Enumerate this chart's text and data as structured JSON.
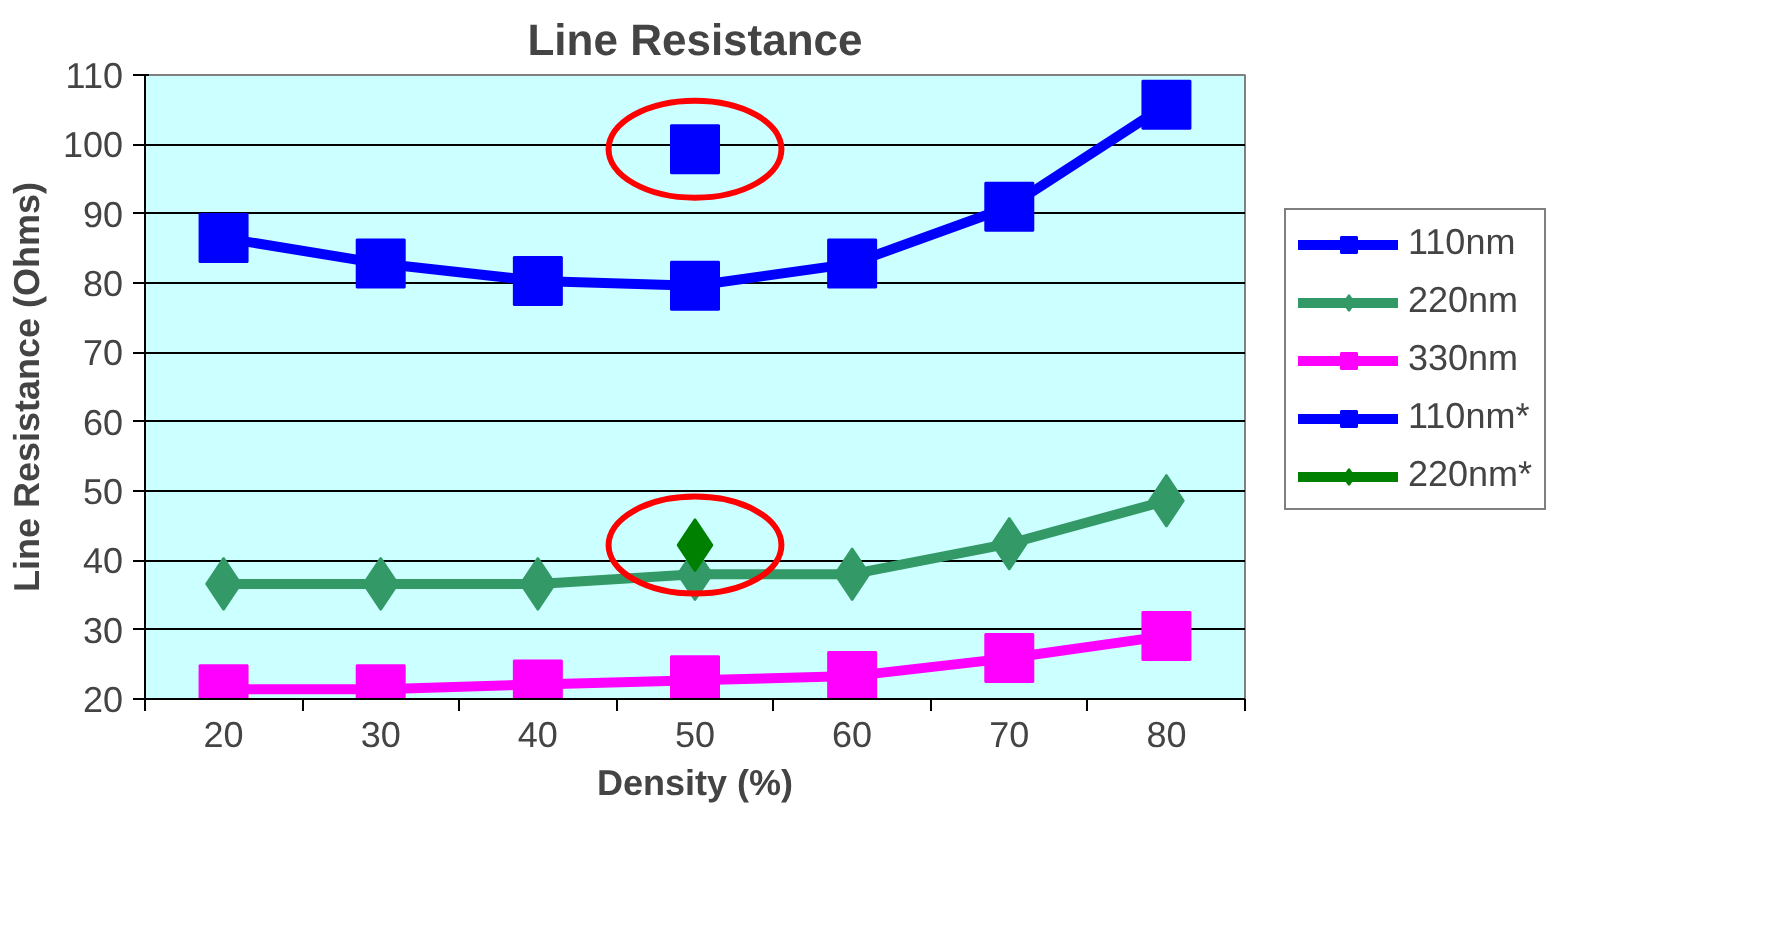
{
  "chart_data": {
    "type": "line",
    "title": "Line Resistance",
    "xlabel": "Density (%)",
    "ylabel": "Line Resistance (Ohms)",
    "categories": [
      "20",
      "30",
      "40",
      "50",
      "60",
      "70",
      "80"
    ],
    "series": [
      {
        "name": "110nm",
        "color": "#0000ff",
        "marker": "square",
        "values": [
          86.5,
          82.8,
          80.3,
          79.6,
          82.8,
          91,
          105.7
        ]
      },
      {
        "name": "220nm",
        "color": "#339966",
        "marker": "diamond",
        "values": [
          36.6,
          36.6,
          36.6,
          38,
          38,
          42.4,
          48.6
        ]
      },
      {
        "name": "330nm",
        "color": "#ff00ff",
        "marker": "square",
        "values": [
          21.4,
          21.4,
          22.1,
          22.7,
          23.3,
          25.9,
          29.1
        ]
      },
      {
        "name": "110nm*",
        "color": "#0000ff",
        "marker": "square",
        "values": [
          null,
          null,
          null,
          99.3,
          null,
          null,
          null
        ]
      },
      {
        "name": "220nm*",
        "color": "#008000",
        "marker": "diamond",
        "values": [
          null,
          null,
          null,
          42.2,
          null,
          null,
          null
        ]
      }
    ],
    "ylim": [
      20,
      110
    ],
    "yticks": [
      20,
      30,
      40,
      50,
      60,
      70,
      80,
      90,
      100,
      110
    ],
    "grid": "y",
    "legend": "right"
  }
}
